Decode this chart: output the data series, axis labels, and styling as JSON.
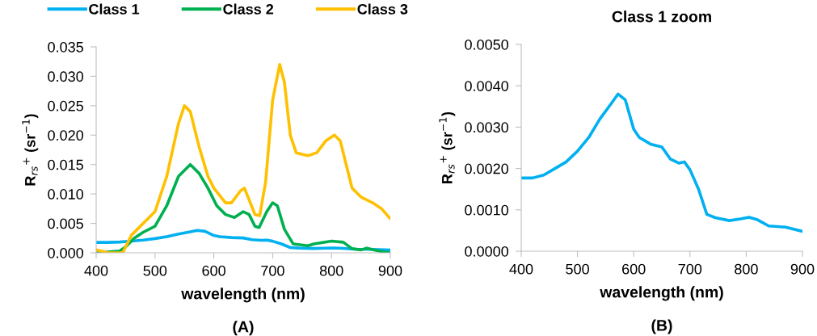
{
  "chart_data": [
    {
      "type": "line",
      "xlabel": "wavelength (nm)",
      "ylabel": "R$_{rs}$$^{+}$ (sr$^{−1}$)",
      "legend": "top",
      "annotations": [
        "(A)"
      ],
      "xlim": [
        400,
        900
      ],
      "xticks": [
        400,
        500,
        600,
        700,
        800,
        900
      ],
      "ylim": [
        0,
        0.035
      ],
      "yticks": [
        {
          "value": 0,
          "label": "0.000"
        },
        {
          "value": 0.005,
          "label": "0.005"
        },
        {
          "value": 0.01,
          "label": "0.010"
        },
        {
          "value": 0.015,
          "label": "0.015"
        },
        {
          "value": 0.02,
          "label": "0.020"
        },
        {
          "value": 0.025,
          "label": "0.025"
        },
        {
          "value": 0.03,
          "label": "0.030"
        },
        {
          "value": 0.035,
          "label": "0.035"
        }
      ],
      "series": [
        {
          "name": "Class 1",
          "color": "#00b0f0",
          "x": [
            400,
            420,
            440,
            460,
            480,
            500,
            520,
            540,
            560,
            572,
            585,
            600,
            610,
            630,
            650,
            665,
            680,
            690,
            700,
            715,
            730,
            745,
            770,
            790,
            805,
            820,
            840,
            870,
            900
          ],
          "values": [
            0.00177,
            0.00177,
            0.00184,
            0.002,
            0.00216,
            0.00242,
            0.00275,
            0.0032,
            0.00357,
            0.0038,
            0.00366,
            0.00295,
            0.00275,
            0.00259,
            0.00252,
            0.00223,
            0.00213,
            0.00216,
            0.00197,
            0.00151,
            0.00089,
            0.00081,
            0.00074,
            0.00078,
            0.00082,
            0.00076,
            0.00061,
            0.00058,
            0.00048
          ]
        },
        {
          "name": "Class 2",
          "color": "#00b050",
          "x": [
            400,
            440,
            450,
            465,
            480,
            500,
            520,
            540,
            560,
            575,
            590,
            605,
            620,
            635,
            650,
            660,
            670,
            677,
            690,
            700,
            708,
            720,
            735,
            760,
            770,
            800,
            820,
            835,
            850,
            860,
            880,
            900
          ],
          "values": [
            0,
            0.0003,
            0.001,
            0.0025,
            0.0035,
            0.0045,
            0.008,
            0.013,
            0.015,
            0.0135,
            0.011,
            0.008,
            0.0065,
            0.006,
            0.007,
            0.0065,
            0.0045,
            0.0043,
            0.007,
            0.0085,
            0.008,
            0.004,
            0.0015,
            0.0012,
            0.0015,
            0.002,
            0.0018,
            0.0007,
            0.0005,
            0.0008,
            0.0003,
            0
          ]
        },
        {
          "name": "Class 3",
          "color": "#ffc000",
          "x": [
            400,
            420,
            445,
            460,
            480,
            500,
            520,
            540,
            550,
            560,
            575,
            590,
            600,
            620,
            630,
            645,
            652,
            660,
            670,
            678,
            688,
            700,
            712,
            720,
            730,
            740,
            760,
            775,
            790,
            805,
            815,
            825,
            835,
            850,
            870,
            885,
            900
          ],
          "values": [
            0.0005,
            0,
            0,
            0.003,
            0.005,
            0.007,
            0.013,
            0.022,
            0.025,
            0.024,
            0.018,
            0.013,
            0.011,
            0.0085,
            0.0085,
            0.0105,
            0.011,
            0.009,
            0.0065,
            0.0063,
            0.012,
            0.026,
            0.032,
            0.029,
            0.02,
            0.017,
            0.0165,
            0.017,
            0.019,
            0.02,
            0.019,
            0.015,
            0.011,
            0.0095,
            0.0085,
            0.0075,
            0.0058
          ]
        }
      ]
    },
    {
      "type": "line",
      "title": "Class 1 zoom",
      "xlabel": "wavelength (nm)",
      "ylabel": "R$_{rs}$$^{+}$ (sr$^{−1}$)",
      "annotations": [
        "(B)"
      ],
      "xlim": [
        400,
        900
      ],
      "xticks": [
        400,
        500,
        600,
        700,
        800,
        900
      ],
      "ylim": [
        0,
        0.005
      ],
      "yticks": [
        {
          "value": 0,
          "label": "0.0000"
        },
        {
          "value": 0.001,
          "label": "0.0010"
        },
        {
          "value": 0.002,
          "label": "0.0020"
        },
        {
          "value": 0.003,
          "label": "0.0030"
        },
        {
          "value": 0.004,
          "label": "0.0040"
        },
        {
          "value": 0.005,
          "label": "0.0050"
        }
      ],
      "series": [
        {
          "color": "#00b0f0",
          "x": [
            400,
            420,
            440,
            460,
            480,
            500,
            520,
            540,
            560,
            572,
            585,
            600,
            610,
            630,
            650,
            665,
            680,
            690,
            700,
            715,
            730,
            745,
            770,
            790,
            805,
            820,
            840,
            870,
            900
          ],
          "values": [
            0.00177,
            0.00177,
            0.00184,
            0.002,
            0.00216,
            0.00242,
            0.00275,
            0.0032,
            0.00357,
            0.0038,
            0.00366,
            0.00295,
            0.00275,
            0.00259,
            0.00252,
            0.00223,
            0.00213,
            0.00216,
            0.00197,
            0.00151,
            0.00089,
            0.00081,
            0.00074,
            0.00078,
            0.00082,
            0.00076,
            0.00061,
            0.00058,
            0.00048
          ]
        }
      ]
    }
  ]
}
